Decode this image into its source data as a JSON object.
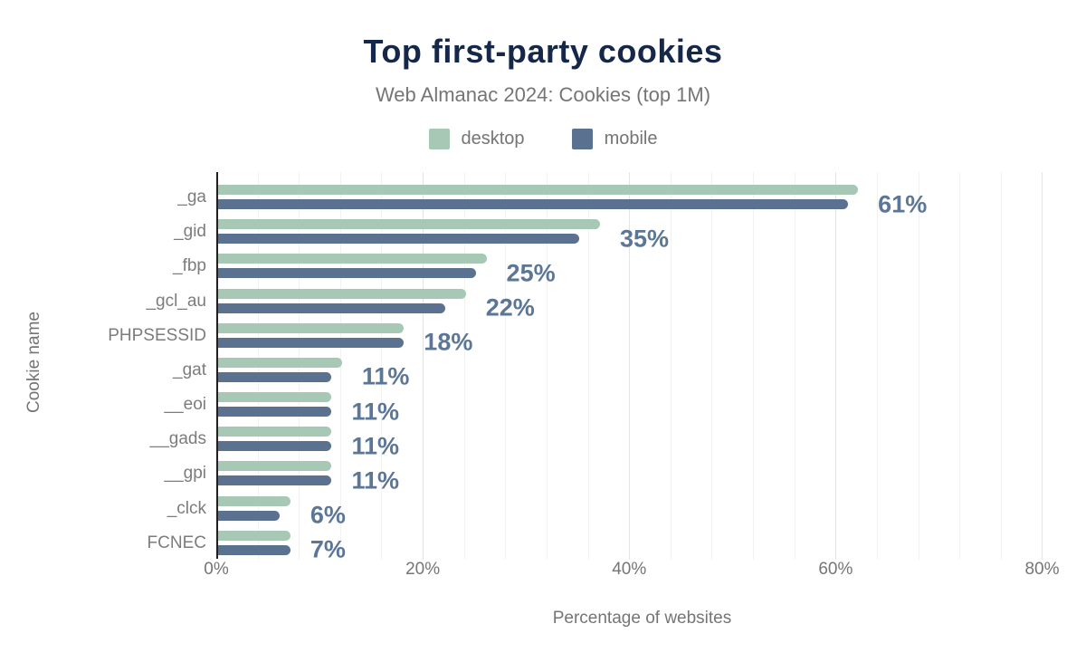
{
  "header": {
    "title": "Top first-party cookies",
    "subtitle": "Web Almanac 2024: Cookies (top 1M)"
  },
  "legend": {
    "items": [
      {
        "label": "desktop",
        "color": "#a7c8b5"
      },
      {
        "label": "mobile",
        "color": "#5b7190"
      }
    ]
  },
  "chart_data": {
    "type": "bar",
    "orientation": "horizontal",
    "title": "Top first-party cookies",
    "subtitle": "Web Almanac 2024: Cookies (top 1M)",
    "xlabel": "Percentage of websites",
    "ylabel": "Cookie name",
    "categories": [
      "_ga",
      "_gid",
      "_fbp",
      "_gcl_au",
      "PHPSESSID",
      "_gat",
      "__eoi",
      "__gads",
      "__gpi",
      "_clck",
      "FCNEC"
    ],
    "series": [
      {
        "name": "desktop",
        "color": "#a7c8b5",
        "values": [
          62,
          37,
          26,
          24,
          18,
          12,
          11,
          11,
          11,
          7,
          7
        ]
      },
      {
        "name": "mobile",
        "color": "#5b7190",
        "values": [
          61,
          35,
          25,
          22,
          18,
          11,
          11,
          11,
          11,
          6,
          7
        ]
      }
    ],
    "data_labels": [
      "61%",
      "35%",
      "25%",
      "22%",
      "18%",
      "11%",
      "11%",
      "11%",
      "11%",
      "6%",
      "7%"
    ],
    "data_label_series": "mobile",
    "x_ticks": [
      "0%",
      "20%",
      "40%",
      "60%",
      "80%"
    ],
    "x_tick_values": [
      0,
      20,
      40,
      60,
      80
    ],
    "xlim": [
      0,
      82.5
    ],
    "minor_grid_step": 4,
    "major_grid_step": 20,
    "grid": "vertical",
    "legend_position": "top",
    "colors": {
      "title": "#15284a",
      "subtitle": "#757575",
      "data_label": "#5b7697",
      "axis_line": "#212121",
      "tick_label": "#757575"
    }
  }
}
